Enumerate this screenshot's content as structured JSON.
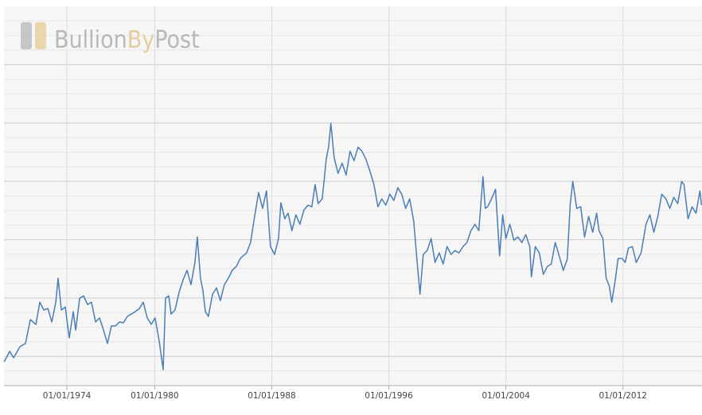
{
  "chart_data": {
    "type": "line",
    "logo": [
      "Bullion",
      "By",
      "Post"
    ],
    "x": [
      1969.71,
      1970.09,
      1970.36,
      1970.79,
      1971.17,
      1971.5,
      1971.88,
      1972.15,
      1972.42,
      1972.7,
      1972.97,
      1973.24,
      1973.4,
      1973.62,
      1973.89,
      1974.16,
      1974.43,
      1974.6,
      1974.87,
      1975.14,
      1975.41,
      1975.68,
      1975.96,
      1976.23,
      1976.5,
      1976.77,
      1977.04,
      1977.32,
      1977.59,
      1977.86,
      1978.13,
      1978.4,
      1978.67,
      1978.95,
      1979.22,
      1979.49,
      1979.76,
      1980.03,
      1980.3,
      1980.58,
      1980.74,
      1980.96,
      1981.12,
      1981.39,
      1981.66,
      1981.94,
      1982.21,
      1982.48,
      1982.75,
      1982.91,
      1983.13,
      1983.29,
      1983.46,
      1983.67,
      1983.95,
      1984.22,
      1984.49,
      1984.76,
      1985.03,
      1985.3,
      1985.58,
      1985.85,
      1986.28,
      1986.55,
      1986.83,
      1987.1,
      1987.37,
      1987.64,
      1987.91,
      1988.19,
      1988.46,
      1988.62,
      1988.89,
      1989.11,
      1989.38,
      1989.65,
      1989.92,
      1990.2,
      1990.47,
      1990.74,
      1990.96,
      1991.17,
      1991.45,
      1991.72,
      1991.88,
      1992.04,
      1992.26,
      1992.53,
      1992.81,
      1993.08,
      1993.35,
      1993.62,
      1993.89,
      1994.16,
      1994.43,
      1994.71,
      1994.98,
      1995.25,
      1995.52,
      1995.79,
      1996.07,
      1996.34,
      1996.61,
      1996.88,
      1997.15,
      1997.42,
      1997.7,
      1997.97,
      1998.13,
      1998.35,
      1998.62,
      1998.89,
      1999.16,
      1999.44,
      1999.71,
      1999.98,
      2000.25,
      2000.52,
      2000.79,
      2001.07,
      2001.34,
      2001.61,
      2001.88,
      2002.15,
      2002.43,
      2002.59,
      2002.75,
      2003.02,
      2003.29,
      2003.57,
      2003.78,
      2004.0,
      2004.27,
      2004.54,
      2004.82,
      2005.09,
      2005.36,
      2005.63,
      2005.74,
      2006.01,
      2006.28,
      2006.56,
      2006.83,
      2007.1,
      2007.37,
      2007.64,
      2007.92,
      2008.19,
      2008.4,
      2008.57,
      2008.84,
      2009.11,
      2009.38,
      2009.65,
      2009.93,
      2010.2,
      2010.36,
      2010.63,
      2010.85,
      2011.07,
      2011.23,
      2011.45,
      2011.67,
      2011.94,
      2012.15,
      2012.37,
      2012.64,
      2012.91,
      2013.24,
      2013.57,
      2013.84,
      2014.11,
      2014.38,
      2014.65,
      2014.93,
      2015.2,
      2015.47,
      2015.74,
      2016.01,
      2016.17,
      2016.45,
      2016.72,
      2016.99,
      2017.26,
      2017.37
    ],
    "series": [
      {
        "color": "#4a7eb5",
        "values": [
          4.09,
          5.86,
          4.77,
          6.67,
          7.22,
          11.3,
          10.49,
          14.3,
          12.94,
          13.21,
          10.9,
          14.3,
          18.39,
          12.94,
          13.48,
          8.17,
          12.67,
          9.53,
          14.98,
          15.39,
          13.89,
          14.3,
          10.9,
          11.58,
          9.53,
          7.22,
          10.22,
          10.22,
          10.9,
          10.76,
          11.85,
          12.26,
          12.67,
          13.21,
          14.3,
          11.58,
          10.49,
          11.58,
          7.76,
          2.72,
          14.98,
          15.39,
          12.26,
          12.94,
          15.94,
          18.11,
          19.75,
          17.3,
          21.11,
          25.47,
          18.39,
          16.34,
          12.67,
          11.85,
          15.66,
          16.75,
          14.57,
          17.3,
          18.39,
          19.75,
          20.43,
          21.79,
          22.75,
          24.52,
          29.01,
          33.1,
          30.37,
          33.37,
          23.84,
          22.47,
          25.2,
          31.33,
          28.6,
          29.56,
          26.56,
          29.28,
          27.65,
          30.1,
          30.92,
          30.65,
          34.46,
          31.19,
          32.01,
          38.82,
          40.86,
          44.95,
          39.09,
          36.37,
          38.14,
          36.09,
          40.18,
          38.54,
          40.86,
          40.18,
          38.82,
          36.77,
          34.46,
          30.65,
          32.01,
          30.92,
          32.82,
          31.73,
          33.91,
          32.82,
          30.37,
          32.01,
          28.19,
          20.02,
          15.66,
          22.47,
          23.15,
          25.2,
          21.11,
          22.75,
          20.84,
          23.84,
          22.47,
          23.15,
          22.75,
          23.84,
          24.52,
          26.56,
          27.65,
          26.56,
          35.82,
          30.37,
          30.65,
          32.01,
          33.64,
          22.2,
          29.28,
          25.2,
          27.65,
          24.92,
          25.47,
          24.52,
          25.88,
          23.84,
          18.66,
          23.84,
          22.75,
          19.07,
          20.43,
          20.84,
          24.52,
          22.2,
          19.75,
          21.66,
          31.19,
          35.0,
          30.37,
          30.65,
          25.47,
          29.01,
          26.29,
          29.56,
          26.56,
          25.2,
          18.39,
          17.03,
          14.3,
          17.71,
          21.79,
          21.79,
          21.11,
          23.56,
          23.84,
          21.11,
          22.75,
          27.65,
          29.28,
          26.29,
          29.01,
          32.82,
          32.01,
          30.37,
          32.28,
          31.19,
          35.0,
          34.46,
          28.6,
          30.65,
          29.56,
          33.37,
          30.92
        ]
      }
    ],
    "xlim": [
      1969.7,
      2017.4
    ],
    "xticks": [
      {
        "value": 1974,
        "label": "01/01/1974"
      },
      {
        "value": 1980,
        "label": "01/01/1980"
      },
      {
        "value": 1988,
        "label": "01/01/1988"
      },
      {
        "value": 1996,
        "label": "01/01/1996"
      },
      {
        "value": 2004,
        "label": "01/01/2004"
      },
      {
        "value": 2012,
        "label": "01/01/2012"
      }
    ],
    "ylim": [
      0,
      65
    ],
    "ygrid": [
      5,
      15,
      25,
      35,
      45,
      55
    ],
    "ygrid_minor_step": 2.5,
    "grid": true
  }
}
